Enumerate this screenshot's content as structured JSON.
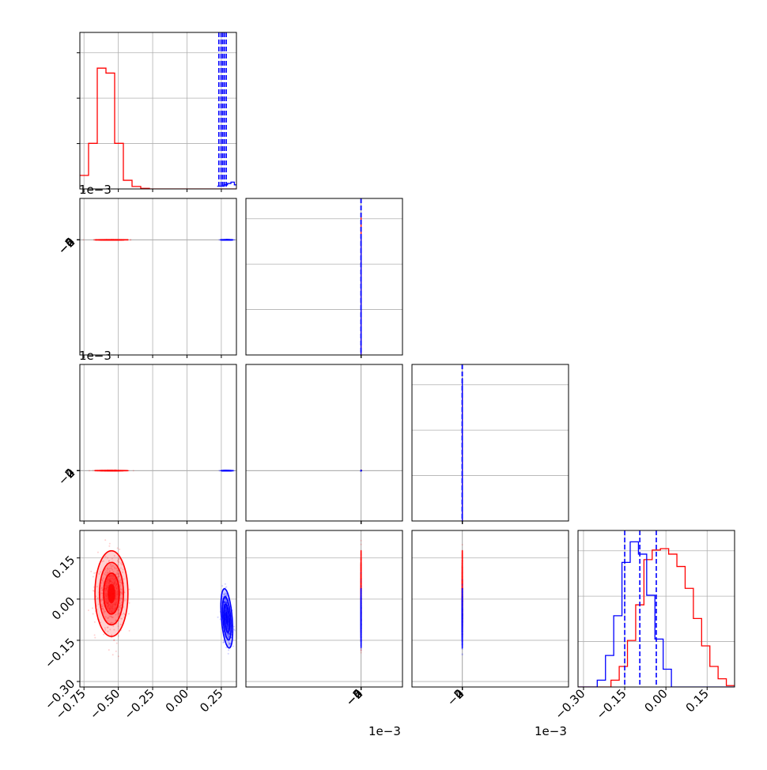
{
  "colors": {
    "red": "#ff0000",
    "blue": "#0000ff",
    "grid": "#b0b0b0",
    "axis": "#000000"
  },
  "offsets": {
    "y1": "1e−3",
    "y2": "1e−3",
    "x1": "1e−3",
    "x2": "1e−3"
  },
  "chart_data": {
    "type": "scatter",
    "title": "",
    "subplots": "corner plot 4x4 (histograms on diagonal, 2D density contours below)",
    "grid": true,
    "parameters": [
      {
        "index": 0,
        "range": [
          -0.78,
          0.36
        ],
        "ticks": [
          -0.75,
          -0.5,
          -0.25,
          0.0,
          0.25
        ],
        "tick_labels": [
          "−0.75",
          "−0.50",
          "−0.25",
          "0.00",
          "0.25"
        ],
        "offset_label": ""
      },
      {
        "index": 1,
        "range": [
          -6.4,
          2.3
        ],
        "ticks": [
          -6,
          -4,
          -2,
          0,
          2
        ],
        "tick_labels": [
          "−6",
          "−4",
          "−2",
          "0",
          "2"
        ],
        "offset_label": "1e−3"
      },
      {
        "index": 2,
        "range": [
          -2.7,
          5.7
        ],
        "ticks": [
          -2,
          0,
          2,
          4
        ],
        "tick_labels": [
          "−2",
          "0",
          "2",
          "4"
        ],
        "offset_label": "1e−3"
      },
      {
        "index": 3,
        "range": [
          -0.32,
          0.25
        ],
        "ticks": [
          -0.3,
          -0.15,
          0.0,
          0.15
        ],
        "tick_labels": [
          "−0.30",
          "−0.15",
          "0.00",
          "0.15"
        ],
        "offset_label": ""
      }
    ],
    "series": [
      {
        "color": "#ff0000",
        "means": [
          -0.55,
          -0.0012,
          0.0024,
          0.02
        ],
        "sigmas": [
          0.05,
          0.00075,
          0.0011,
          0.065
        ],
        "correlations": [
          [
            1,
            0.5,
            -0.3,
            0
          ],
          [
            0.5,
            1,
            0,
            -0.3
          ],
          [
            -0.3,
            0,
            1,
            -0.6
          ],
          [
            0,
            -0.3,
            -0.6,
            1
          ]
        ],
        "quantile_lines": [],
        "histograms": [
          {
            "bin_edges": [
              -0.78,
              -0.7167,
              -0.6533,
              -0.59,
              -0.5267,
              -0.4633,
              -0.4,
              -0.3367,
              -0.2733,
              0.36
            ],
            "counts": [
              0.11,
              0.37,
              0.98,
              0.94,
              0.37,
              0.07,
              0.02,
              0.005,
              0.0
            ]
          },
          {
            "bin_edges": [
              -6.4,
              -2.2,
              -1.9,
              -1.6,
              -1.3,
              -1.0,
              -0.7,
              -0.4,
              -0.1,
              0.2,
              0.5,
              2.3
            ],
            "counts": [
              0.0,
              0.23,
              0.48,
              0.86,
              1.0,
              0.82,
              0.48,
              0.18,
              0.06,
              0.02,
              0.0
            ]
          },
          {
            "bin_edges": [
              -2.7,
              -0.6,
              -0.2,
              0.2,
              0.6,
              1.0,
              1.4,
              1.8,
              2.2,
              2.6,
              3.0,
              3.4,
              3.8,
              4.2,
              4.6,
              5.0,
              5.7
            ],
            "counts": [
              0.0,
              0.03,
              0.06,
              0.13,
              0.26,
              0.37,
              0.64,
              0.82,
              0.97,
              0.96,
              0.83,
              0.52,
              0.27,
              0.1,
              0.03,
              0.0
            ]
          },
          {
            "bin_edges": [
              -0.32,
              -0.2,
              -0.17,
              -0.14,
              -0.11,
              -0.08,
              -0.05,
              -0.02,
              0.01,
              0.04,
              0.07,
              0.1,
              0.13,
              0.16,
              0.19,
              0.22,
              0.25
            ],
            "counts": [
              0.0,
              0.05,
              0.15,
              0.34,
              0.6,
              0.93,
              1.0,
              1.01,
              0.97,
              0.88,
              0.72,
              0.5,
              0.3,
              0.15,
              0.06,
              0.01
            ]
          }
        ]
      },
      {
        "color": "#0000ff",
        "means": [
          0.29,
          -0.0014,
          0.0006,
          -0.07
        ],
        "sigmas": [
          0.018,
          0.0011,
          0.0007,
          0.045
        ],
        "correlations": [
          [
            1,
            -0.2,
            -0.5,
            -0.4
          ],
          [
            -0.2,
            1,
            0.3,
            -0.6
          ],
          [
            -0.5,
            0.3,
            1,
            0.6
          ],
          [
            -0.4,
            -0.6,
            0.6,
            1
          ]
        ],
        "quantile_lines": [
          [
            0.232,
            0.248,
            0.26,
            0.272,
            0.286
          ],
          [
            -0.0028,
            -0.0013,
            0.0
          ],
          [
            -0.0002,
            0.0006,
            0.0013
          ],
          [
            -0.15,
            -0.095,
            -0.035
          ]
        ],
        "histograms": [
          {
            "bin_edges": [
              0.22,
              0.245,
              0.27,
              0.295,
              0.32,
              0.345,
              0.36
            ],
            "counts": [
              0.02,
              0.02,
              0.03,
              0.04,
              0.05,
              0.03
            ]
          },
          {
            "bin_edges": [
              -6.4,
              -5.2,
              -4.6,
              -4.0,
              -3.4,
              -2.8,
              -2.2,
              -1.6,
              -1.0,
              -0.4,
              0.2,
              0.8,
              1.4,
              2.3
            ],
            "counts": [
              0.0,
              0.02,
              0.06,
              0.12,
              0.24,
              0.43,
              0.63,
              0.82,
              0.85,
              0.73,
              0.4,
              0.2,
              0.08
            ]
          },
          {
            "bin_edges": [
              -2.7,
              -1.8,
              -1.4,
              -1.0,
              -0.6,
              -0.2,
              0.2,
              0.6,
              1.0,
              1.4,
              1.8,
              2.2,
              5.7
            ],
            "counts": [
              0.0,
              0.03,
              0.13,
              0.38,
              0.88,
              1.02,
              1.04,
              0.8,
              0.4,
              0.13,
              0.03,
              0.0
            ]
          },
          {
            "bin_edges": [
              -0.32,
              -0.25,
              -0.22,
              -0.19,
              -0.16,
              -0.13,
              -0.1,
              -0.07,
              -0.04,
              -0.01,
              0.02,
              0.25
            ],
            "counts": [
              0.0,
              0.05,
              0.23,
              0.52,
              0.91,
              1.06,
              0.97,
              0.67,
              0.35,
              0.13,
              0.0
            ]
          }
        ]
      }
    ]
  }
}
